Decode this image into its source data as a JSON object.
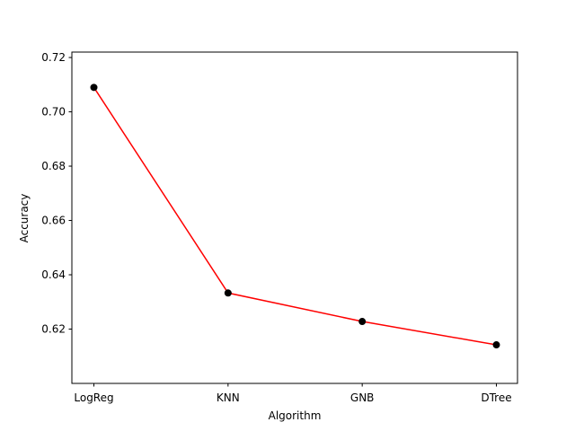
{
  "chart_data": {
    "type": "line",
    "categories": [
      "LogReg",
      "KNN",
      "GNB",
      "DTree"
    ],
    "values": [
      0.709,
      0.6333,
      0.6228,
      0.6142
    ],
    "xlabel": "Algorithm",
    "ylabel": "Accuracy",
    "ylim": [
      0.6,
      0.722
    ],
    "yticks": [
      "0.62",
      "0.64",
      "0.66",
      "0.68",
      "0.70",
      "0.72"
    ],
    "grid": false,
    "line_color": "#ff0000",
    "marker_color": "#000000"
  }
}
